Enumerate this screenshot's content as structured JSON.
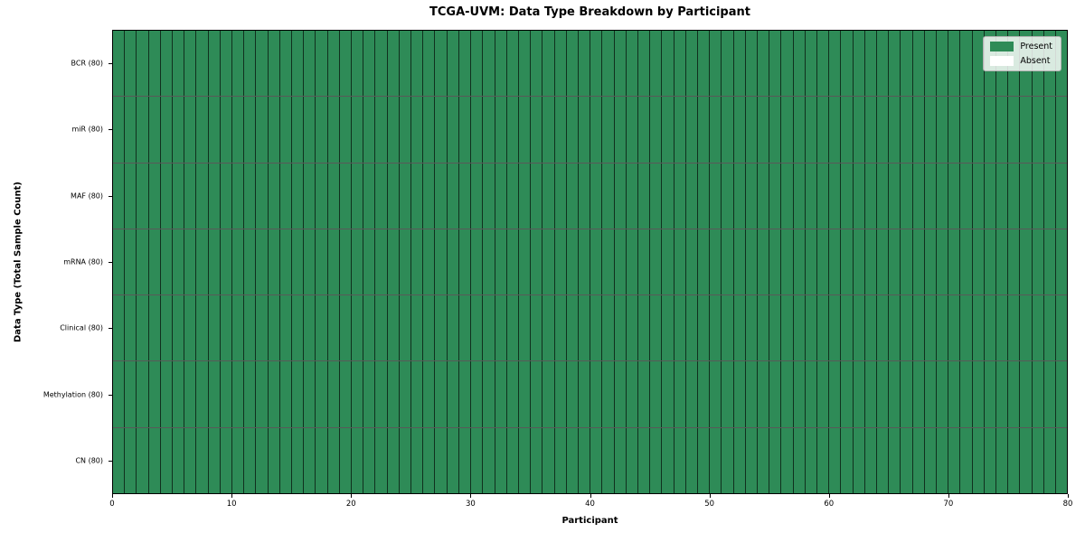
{
  "chart_data": {
    "type": "heatmap",
    "title": "TCGA-UVM: Data Type Breakdown by Participant",
    "xlabel": "Participant",
    "ylabel": "Data Type (Total Sample Count)",
    "n_participants": 80,
    "x_ticks": [
      0,
      10,
      20,
      30,
      40,
      50,
      60,
      70,
      80
    ],
    "xlim": [
      0,
      80
    ],
    "grid": "cell-borders",
    "legend_position": "upper right",
    "rows": [
      {
        "label": "BCR (80)",
        "data_type": "BCR",
        "total_sample_count": 80,
        "present_count": 80
      },
      {
        "label": "miR (80)",
        "data_type": "miR",
        "total_sample_count": 80,
        "present_count": 80
      },
      {
        "label": "MAF (80)",
        "data_type": "MAF",
        "total_sample_count": 80,
        "present_count": 80
      },
      {
        "label": "mRNA (80)",
        "data_type": "mRNA",
        "total_sample_count": 80,
        "present_count": 80
      },
      {
        "label": "Clinical (80)",
        "data_type": "Clinical",
        "total_sample_count": 80,
        "present_count": 80
      },
      {
        "label": "Methylation (80)",
        "data_type": "Methylation",
        "total_sample_count": 80,
        "present_count": 80
      },
      {
        "label": "CN (80)",
        "data_type": "CN",
        "total_sample_count": 80,
        "present_count": 80
      }
    ],
    "legend": [
      {
        "label": "Present",
        "color": "#2e8b57"
      },
      {
        "label": "Absent",
        "color": "#ffffff"
      }
    ],
    "colors": {
      "present": "#2e8b57",
      "absent": "#ffffff",
      "cell_border": "rgba(0,0,0,0.65)",
      "axis": "#000000"
    }
  }
}
